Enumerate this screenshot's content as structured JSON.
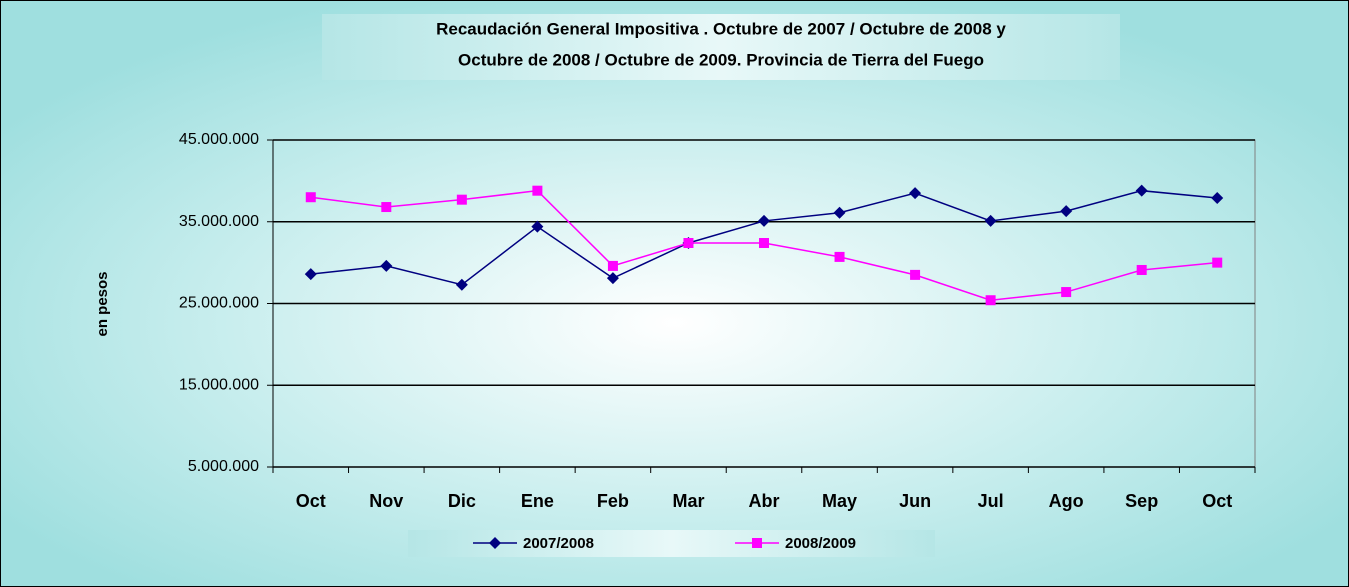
{
  "chart_data": {
    "type": "line",
    "title": [
      "Recaudación General Impositiva . Octubre de  2007 / Octubre de 2008 y",
      "Octubre de 2008 / Octubre de 2009. Provincia de Tierra del Fuego"
    ],
    "ylabel": "en pesos",
    "categories": [
      "Oct",
      "Nov",
      "Dic",
      "Ene",
      "Feb",
      "Mar",
      "Abr",
      "May",
      "Jun",
      "Jul",
      "Ago",
      "Sep",
      "Oct"
    ],
    "series": [
      {
        "name": "2007/2008",
        "color": "#000080",
        "marker": "diamond",
        "values": [
          28600000,
          29600000,
          27300000,
          34400000,
          28100000,
          32400000,
          35100000,
          36100000,
          38500000,
          35100000,
          36300000,
          38800000,
          37900000
        ]
      },
      {
        "name": "2008/2009",
        "color": "#ff00ff",
        "marker": "square",
        "values": [
          38000000,
          36800000,
          37700000,
          38800000,
          29600000,
          32400000,
          32400000,
          30700000,
          28500000,
          25400000,
          26400000,
          29100000,
          30000000
        ]
      }
    ],
    "ylim": [
      5000000,
      45000000
    ],
    "yticks": [
      {
        "value": 5000000,
        "label": "5.000.000"
      },
      {
        "value": 15000000,
        "label": "15.000.000"
      },
      {
        "value": 25000000,
        "label": "25.000.000"
      },
      {
        "value": 35000000,
        "label": "35.000.000"
      },
      {
        "value": 45000000,
        "label": "45.000.000"
      }
    ],
    "grid": true,
    "legend": "bottom"
  }
}
